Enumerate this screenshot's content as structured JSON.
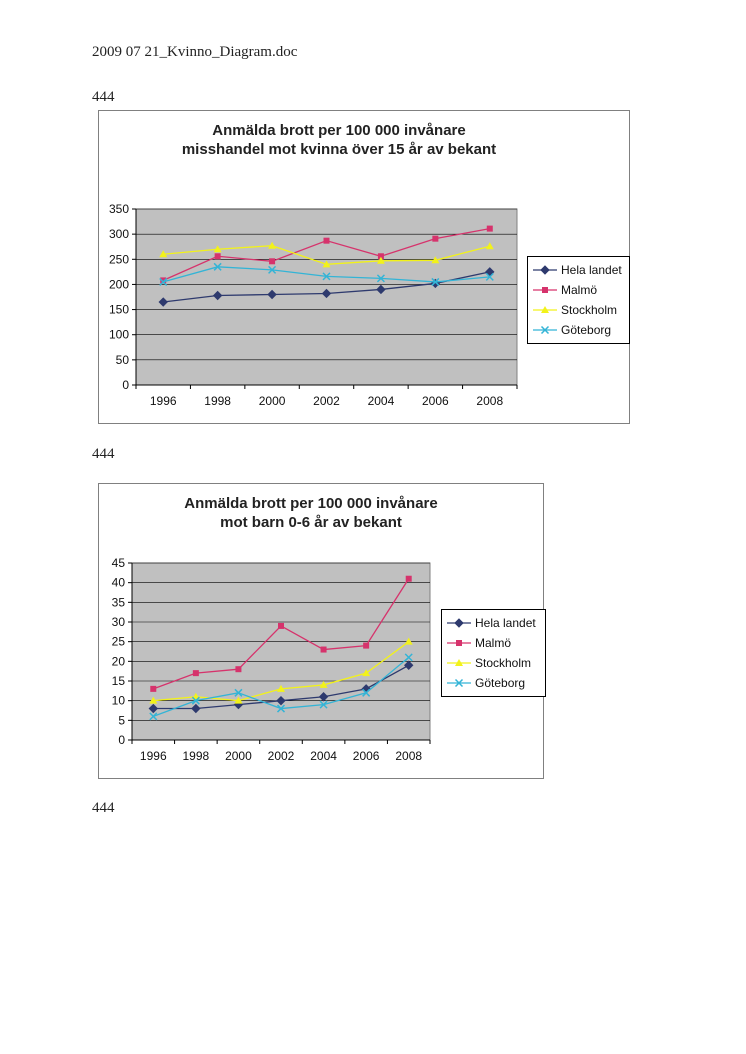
{
  "document": {
    "header": "2009 07 21_Kvinno_Diagram.doc",
    "labels": [
      "444",
      "444",
      "444"
    ]
  },
  "colors": {
    "Hela landet": "#2e3a6e",
    "Malmö": "#d6336c",
    "Stockholm": "#f2f21a",
    "Göteborg": "#33b4d6",
    "plot_area": "#c0c0c0",
    "gridline": "#000000"
  },
  "chart_data": [
    {
      "type": "line",
      "title": [
        "Anmälda brott per 100 000 invånare",
        "misshandel mot kvinna över 15 år av bekant"
      ],
      "x": [
        "1996",
        "1998",
        "2000",
        "2002",
        "2004",
        "2006",
        "2008"
      ],
      "ylim": [
        0,
        350
      ],
      "yticks": [
        0,
        50,
        100,
        150,
        200,
        250,
        300,
        350
      ],
      "grid": true,
      "legend": "right",
      "series": [
        {
          "name": "Hela landet",
          "marker": "diamond",
          "values": [
            165,
            178,
            180,
            182,
            190,
            202,
            225
          ]
        },
        {
          "name": "Malmö",
          "marker": "square",
          "values": [
            208,
            256,
            246,
            287,
            256,
            291,
            311
          ]
        },
        {
          "name": "Stockholm",
          "marker": "triangle",
          "values": [
            260,
            270,
            277,
            240,
            247,
            248,
            276
          ]
        },
        {
          "name": "Göteborg",
          "marker": "x",
          "values": [
            205,
            235,
            229,
            216,
            212,
            205,
            215
          ]
        }
      ]
    },
    {
      "type": "line",
      "title": [
        "Anmälda brott per 100 000 invånare",
        "mot barn 0-6 år av bekant"
      ],
      "x": [
        "1996",
        "1998",
        "2000",
        "2002",
        "2004",
        "2006",
        "2008"
      ],
      "ylim": [
        0,
        45
      ],
      "yticks": [
        0,
        5,
        10,
        15,
        20,
        25,
        30,
        35,
        40,
        45
      ],
      "grid": true,
      "legend": "right",
      "series": [
        {
          "name": "Hela landet",
          "marker": "diamond",
          "values": [
            8,
            8,
            9,
            10,
            11,
            13,
            19
          ]
        },
        {
          "name": "Malmö",
          "marker": "square",
          "values": [
            13,
            17,
            18,
            29,
            23,
            24,
            41
          ]
        },
        {
          "name": "Stockholm",
          "marker": "triangle",
          "values": [
            10,
            11,
            10,
            13,
            14,
            17,
            25
          ]
        },
        {
          "name": "Göteborg",
          "marker": "x",
          "values": [
            6,
            10,
            12,
            8,
            9,
            12,
            21
          ]
        }
      ]
    }
  ]
}
